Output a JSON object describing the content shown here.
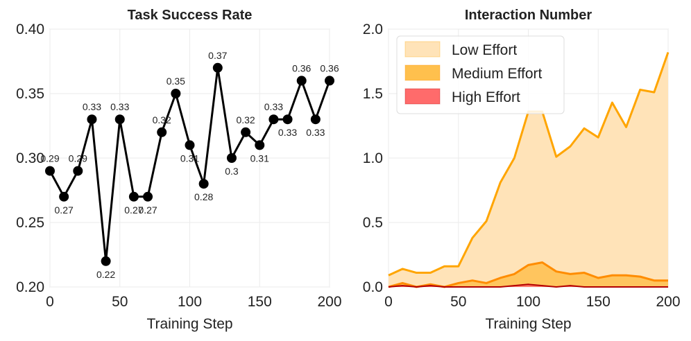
{
  "chart_data": [
    {
      "type": "line",
      "title": "Task Success Rate",
      "xlabel": "Training Step",
      "ylabel": "",
      "xlim": [
        0,
        200
      ],
      "ylim": [
        0.2,
        0.4
      ],
      "xticks": [
        0,
        50,
        100,
        150,
        200
      ],
      "xtick_labels": [
        "0",
        "50",
        "100",
        "150",
        "200"
      ],
      "yticks": [
        0.2,
        0.25,
        0.3,
        0.35,
        0.4
      ],
      "ytick_labels": [
        "0.20",
        "0.25",
        "0.30",
        "0.35",
        "0.40"
      ],
      "grid": true,
      "x": [
        0,
        10,
        20,
        30,
        40,
        50,
        60,
        70,
        80,
        90,
        100,
        110,
        120,
        130,
        140,
        150,
        160,
        170,
        180,
        190,
        200
      ],
      "y": [
        0.29,
        0.27,
        0.29,
        0.33,
        0.22,
        0.33,
        0.27,
        0.27,
        0.32,
        0.35,
        0.31,
        0.28,
        0.37,
        0.3,
        0.32,
        0.31,
        0.33,
        0.33,
        0.36,
        0.33,
        0.36
      ],
      "point_labels": [
        "0.29",
        "0.27",
        "0.29",
        "0.33",
        "0.22",
        "0.33",
        "0.27",
        "0.27",
        "0.32",
        "0.35",
        "0.31",
        "0.28",
        "0.37",
        "0.3",
        "0.32",
        "0.31",
        "0.33",
        "0.33",
        "0.36",
        "0.33",
        "0.36"
      ],
      "label_position": [
        "above",
        "below",
        "above",
        "above",
        "below",
        "above",
        "below",
        "below",
        "above",
        "above",
        "below",
        "below",
        "above",
        "below",
        "above",
        "below",
        "above",
        "below",
        "above",
        "below",
        "above"
      ],
      "color": "#000000"
    },
    {
      "type": "area",
      "title": "Interaction Number",
      "xlabel": "Training Step",
      "ylabel": "",
      "xlim": [
        0,
        200
      ],
      "ylim": [
        0.0,
        2.0
      ],
      "xticks": [
        0,
        50,
        100,
        150,
        200
      ],
      "xtick_labels": [
        "0",
        "50",
        "100",
        "150",
        "200"
      ],
      "yticks": [
        0.0,
        0.5,
        1.0,
        1.5,
        2.0
      ],
      "ytick_labels": [
        "0.0",
        "0.5",
        "1.0",
        "1.5",
        "2.0"
      ],
      "grid": true,
      "legend_location": "top-left",
      "x": [
        0,
        10,
        20,
        30,
        40,
        50,
        60,
        70,
        80,
        90,
        100,
        110,
        120,
        130,
        140,
        150,
        160,
        170,
        180,
        190,
        200
      ],
      "series": [
        {
          "name": "Low Effort",
          "color": "#ffe3b8",
          "line_color": "#ffa500",
          "values": [
            0.09,
            0.14,
            0.11,
            0.11,
            0.16,
            0.16,
            0.38,
            0.51,
            0.81,
            1.0,
            1.36,
            1.36,
            1.01,
            1.09,
            1.23,
            1.16,
            1.43,
            1.24,
            1.53,
            1.51,
            1.82
          ]
        },
        {
          "name": "Medium Effort",
          "color": "#ffc04d",
          "line_color": "#ff8c00",
          "values": [
            0.0,
            0.03,
            0.0,
            0.02,
            0.0,
            0.03,
            0.05,
            0.03,
            0.07,
            0.1,
            0.17,
            0.19,
            0.12,
            0.1,
            0.11,
            0.07,
            0.09,
            0.09,
            0.08,
            0.05,
            0.05
          ]
        },
        {
          "name": "High Effort",
          "color": "#ff6b6b",
          "line_color": "#b20000",
          "values": [
            0.0,
            0.01,
            0.0,
            0.01,
            0.0,
            0.0,
            0.0,
            0.0,
            0.0,
            0.01,
            0.02,
            0.01,
            0.0,
            0.01,
            0.0,
            0.0,
            0.0,
            0.0,
            0.0,
            0.0,
            0.0
          ]
        }
      ]
    }
  ]
}
